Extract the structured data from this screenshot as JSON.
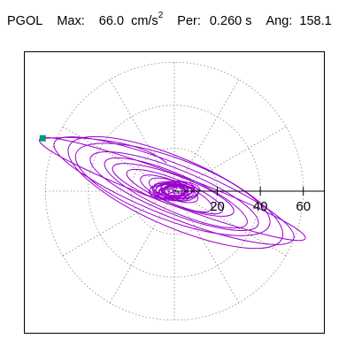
{
  "header": {
    "component": "PGOL",
    "max_label": "Max:",
    "max_value": "66.0",
    "max_unit": "cm/s",
    "max_unit_exp": "2",
    "period_label": "Per:",
    "period_value": "0.260 s",
    "angle_label": "Ang:",
    "angle_value": "158.1"
  },
  "chart_data": {
    "type": "polar-orbit",
    "title": "PGOL  Max: 66.0 cm/s^2  Per: 0.260 s  Ang: 158.1",
    "r_ticks": [
      "20",
      "40",
      "60"
    ],
    "r_tick_values": [
      20,
      40,
      60
    ],
    "r_max": 70,
    "angular_grid_step_deg": 30,
    "grid": true,
    "trace_color": "#9900cc",
    "marker_color": "#009977",
    "peak": {
      "value": 66.0,
      "angle_deg": 158.1
    },
    "orbit_semi_major": [
      66,
      60,
      54,
      48,
      42,
      36,
      30,
      24,
      18,
      12,
      7
    ],
    "orbit_semi_minor": [
      4.4,
      7.6,
      10.0,
      9.0,
      6.4,
      5.4,
      4.3,
      3.5,
      3.2,
      2.6,
      2.2
    ],
    "orbit_tilt_deg": 158.1
  }
}
